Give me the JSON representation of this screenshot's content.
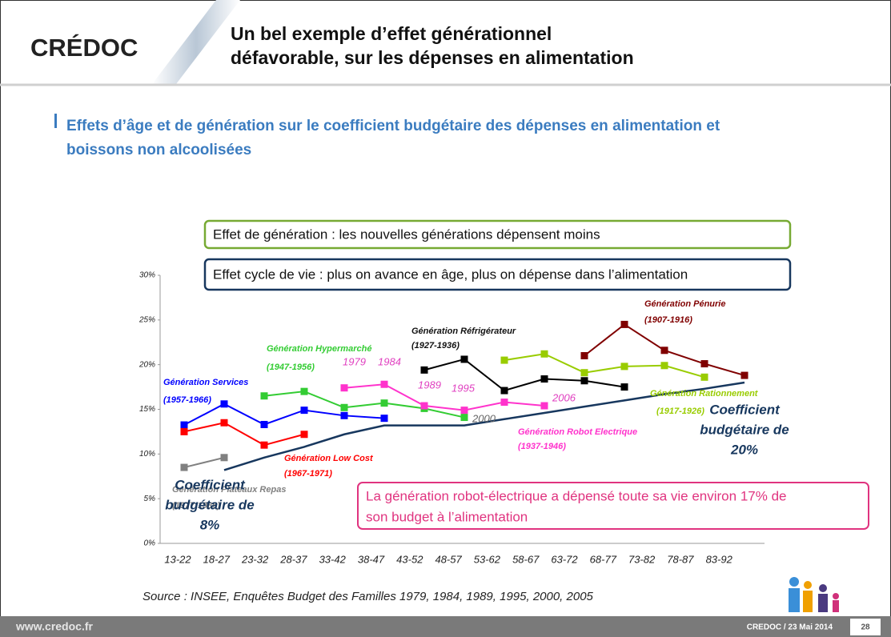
{
  "header": {
    "logo": "CRÉDOC",
    "title": [
      "Un bel exemple d’effet générationnel",
      "défavorable, sur les dépenses en alimentation"
    ]
  },
  "subtitle": [
    "Effets d’âge et de génération sur le coefficient budgétaire des dépenses en alimentation et",
    "boissons non alcoolisées"
  ],
  "boxes": [
    "Effet de génération : les nouvelles générations dépensent moins",
    "Effet cycle de vie : plus on avance en âge, plus on dépense dans l’alimentation",
    [
      "La génération robot-électrique a dépensé toute sa vie environ 17% de",
      "son budget à l’alimentation"
    ]
  ],
  "chart_data": {
    "type": "line",
    "categories": [
      "13-22",
      "18-27",
      "23-32",
      "28-37",
      "33-42",
      "38-47",
      "43-52",
      "48-57",
      "53-62",
      "58-67",
      "63-72",
      "68-77",
      "73-82",
      "78-87",
      "83-92"
    ],
    "ylim": [
      0,
      30
    ],
    "yticks": [
      {
        "value": 0,
        "label": "0%"
      },
      {
        "value": 5,
        "label": "5%"
      },
      {
        "value": 10,
        "label": "10%"
      },
      {
        "value": 15,
        "label": "15%"
      },
      {
        "value": 20,
        "label": "20%"
      },
      {
        "value": 25,
        "label": "25%"
      },
      {
        "value": 30,
        "label": "30%"
      }
    ],
    "grid": false,
    "series": [
      {
        "name": "Génération Services",
        "period": "(1957-1966)",
        "color": "#0000ff",
        "values": [
          13.25,
          15.6,
          13.3,
          14.9,
          14.3,
          14.0,
          null,
          null,
          null,
          null,
          null,
          null,
          null,
          null,
          null
        ]
      },
      {
        "name": "Génération Low Cost",
        "period": "(1967-1971)",
        "color": "#ff0000",
        "values": [
          12.5,
          13.5,
          11.0,
          12.2,
          null,
          null,
          null,
          null,
          null,
          null,
          null,
          null,
          null,
          null,
          null
        ]
      },
      {
        "name": "Génération Hypermarché",
        "period": "(1947-1956)",
        "color": "#33cc33",
        "values": [
          null,
          null,
          16.5,
          17.0,
          15.2,
          15.7,
          15.1,
          14.1,
          null,
          null,
          null,
          null,
          null,
          null,
          null
        ]
      },
      {
        "name": "Génération Robot Electrique",
        "period": "(1937-1946)",
        "color": "#ff33cc",
        "values": [
          null,
          null,
          null,
          null,
          17.4,
          17.8,
          15.4,
          14.9,
          15.8,
          15.4,
          null,
          null,
          null,
          null,
          null
        ]
      },
      {
        "name": "Génération Réfrigérateur",
        "period": "(1927-1936)",
        "color": "#000000",
        "values": [
          null,
          null,
          null,
          null,
          null,
          null,
          19.4,
          20.6,
          17.1,
          18.4,
          18.2,
          17.5,
          null,
          null,
          null
        ]
      },
      {
        "name": "Génération Rationnement",
        "period": "(1917-1926)",
        "color": "#99cc00",
        "values": [
          null,
          null,
          null,
          null,
          null,
          null,
          null,
          null,
          20.5,
          21.2,
          19.1,
          19.8,
          19.9,
          18.6,
          null
        ]
      },
      {
        "name": "Génération Pénurie",
        "period": "(1907-1916)",
        "color": "#800000",
        "values": [
          null,
          null,
          null,
          null,
          null,
          null,
          null,
          null,
          null,
          null,
          21.0,
          24.5,
          21.6,
          20.1,
          18.8
        ]
      },
      {
        "name": "Génération Plateaux Repas",
        "period": "(1977-1986)",
        "color": "#808080",
        "values": [
          8.5,
          9.6,
          null,
          null,
          null,
          null,
          null,
          null,
          null,
          null,
          null,
          null,
          null,
          null,
          null
        ]
      },
      {
        "color": "#17375e",
        "markers": false,
        "values": [
          null,
          8.2,
          9.6,
          10.8,
          12.2,
          13.2,
          13.2,
          13.2,
          13.9,
          14.6,
          15.3,
          16.0,
          16.7,
          17.3,
          18.0
        ]
      }
    ],
    "annotations": [
      "1979",
      "1984",
      "1989",
      "1995",
      "2000",
      "2006",
      [
        "Coefficient",
        "budgétaire de",
        "8%"
      ],
      [
        "Coefficient",
        "budgétaire de",
        "20%"
      ]
    ]
  },
  "source": "Source : INSEE, Enquêtes Budget des Familles 1979, 1984, 1989, 1995, 2000, 2005",
  "footer": {
    "site": "www.credoc.fr",
    "date": "CREDOC / 23 Mai 2014",
    "page": "28"
  }
}
